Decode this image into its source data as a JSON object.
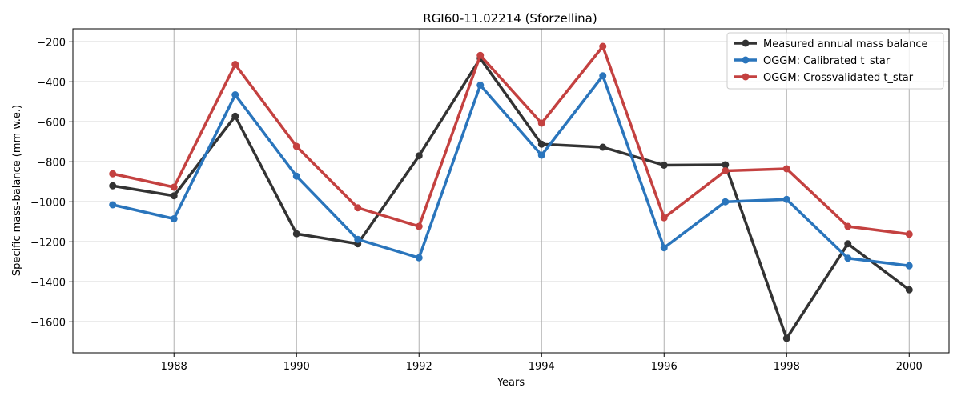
{
  "chart_data": {
    "type": "line",
    "title": "RGI60-11.02214 (Sforzellina)",
    "xlabel": "Years",
    "ylabel": "Specific mass-balance (mm w.e.)",
    "x": [
      1987,
      1988,
      1989,
      1990,
      1991,
      1992,
      1993,
      1994,
      1995,
      1996,
      1997,
      1998,
      1999,
      2000
    ],
    "xlim": [
      1986.35,
      2000.65
    ],
    "ylim": [
      -1755,
      -135
    ],
    "xticks": [
      1988,
      1990,
      1992,
      1994,
      1996,
      1998,
      2000
    ],
    "yticks": [
      -1600,
      -1400,
      -1200,
      -1000,
      -800,
      -600,
      -400,
      -200
    ],
    "grid": true,
    "legend_position": "top-right",
    "series": [
      {
        "name": "Measured annual mass balance",
        "color": "#333333",
        "values": [
          -920,
          -970,
          -572,
          -1160,
          -1210,
          -770,
          -283,
          -712,
          -727,
          -817,
          -815,
          -1683,
          -1210,
          -1440
        ]
      },
      {
        "name": "OGGM: Calibrated t_star",
        "color": "#2a75bc",
        "values": [
          -1015,
          -1085,
          -465,
          -872,
          -1188,
          -1280,
          -417,
          -767,
          -370,
          -1230,
          -1000,
          -988,
          -1282,
          -1320
        ]
      },
      {
        "name": "OGGM: Crossvalidated t_star",
        "color": "#c44140",
        "values": [
          -860,
          -927,
          -313,
          -723,
          -1030,
          -1123,
          -268,
          -607,
          -223,
          -1080,
          -845,
          -835,
          -1123,
          -1162
        ]
      }
    ]
  }
}
